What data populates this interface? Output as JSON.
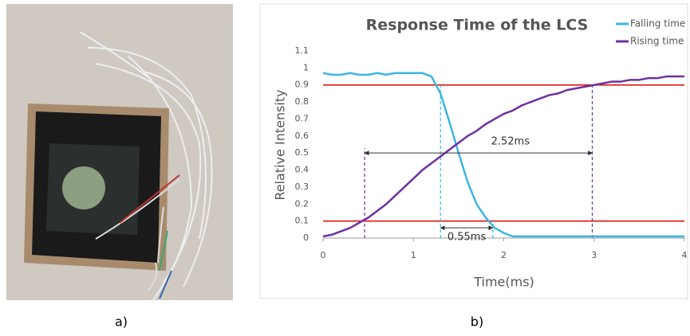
{
  "panel_labels": [
    "a)",
    "b)"
  ],
  "chart_data": {
    "type": "line",
    "title": "Response Time of the LCS",
    "xlabel": "Time(ms)",
    "ylabel": "Relative Intensity",
    "x": [
      0,
      0.1,
      0.2,
      0.3,
      0.4,
      0.5,
      0.6,
      0.7,
      0.8,
      0.9,
      1,
      1.1,
      1.2,
      1.3,
      1.4,
      1.5,
      1.6,
      1.7,
      1.8,
      1.9,
      2,
      2.1,
      2.2,
      2.3,
      2.4,
      2.5,
      2.6,
      2.7,
      2.8,
      2.9,
      3,
      3.1,
      3.2,
      3.3,
      3.4,
      3.5,
      3.6,
      3.7,
      3.8,
      3.9,
      4
    ],
    "series": [
      {
        "name": "Falling time",
        "color": "#3db5e2",
        "values": [
          0.97,
          0.96,
          0.96,
          0.97,
          0.96,
          0.96,
          0.97,
          0.96,
          0.97,
          0.97,
          0.97,
          0.97,
          0.95,
          0.85,
          0.68,
          0.5,
          0.33,
          0.2,
          0.12,
          0.06,
          0.03,
          0.01,
          0.01,
          0.01,
          0.01,
          0.01,
          0.01,
          0.01,
          0.01,
          0.01,
          0.01,
          0.01,
          0.01,
          0.01,
          0.01,
          0.01,
          0.01,
          0.01,
          0.01,
          0.01,
          0.01
        ]
      },
      {
        "name": "Rising time",
        "color": "#7030a0",
        "values": [
          0.01,
          0.02,
          0.04,
          0.06,
          0.09,
          0.12,
          0.16,
          0.2,
          0.25,
          0.3,
          0.35,
          0.4,
          0.44,
          0.48,
          0.52,
          0.56,
          0.6,
          0.63,
          0.67,
          0.7,
          0.73,
          0.75,
          0.78,
          0.8,
          0.82,
          0.84,
          0.85,
          0.87,
          0.88,
          0.89,
          0.9,
          0.91,
          0.92,
          0.92,
          0.93,
          0.93,
          0.94,
          0.94,
          0.95,
          0.95,
          0.95
        ]
      }
    ],
    "xlim": [
      0,
      4
    ],
    "xticks": [
      0,
      1,
      2,
      3,
      4
    ],
    "ylim": [
      0,
      1.1
    ],
    "yticks": [
      0,
      0.1,
      0.2,
      0.3,
      0.4,
      0.5,
      0.6,
      0.7,
      0.8,
      0.9,
      1,
      1.1
    ],
    "hlines": [
      0.9,
      0.1
    ],
    "hline_color": "#e02020",
    "vlines": [
      {
        "x": 0.46,
        "top": 0.53,
        "color": "#7030a0"
      },
      {
        "x": 2.98,
        "top": 0.9,
        "color": "#7030a0"
      },
      {
        "x": 1.3,
        "top": 0.9,
        "color": "#3db5e2"
      },
      {
        "x": 1.88,
        "top": 0.1,
        "color": "#3db5e2"
      }
    ],
    "annotations": [
      {
        "text": "2.52ms",
        "x0": 0.46,
        "x1": 2.98,
        "y": 0.5
      },
      {
        "text": "0.55ms",
        "x0": 1.3,
        "x1": 1.88,
        "y": 0.06
      }
    ],
    "legend": "upper right"
  }
}
